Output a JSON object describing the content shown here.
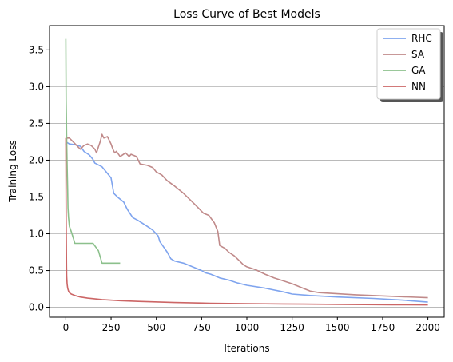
{
  "chart_data": {
    "type": "line",
    "title": "Loss Curve of Best Models",
    "xlabel": "Iterations",
    "ylabel": "Training Loss",
    "xlim": [
      -90,
      2090
    ],
    "ylim": [
      -0.135,
      3.83
    ],
    "x_ticks": [
      0,
      250,
      500,
      750,
      1000,
      1250,
      1500,
      1750,
      2000
    ],
    "y_ticks": [
      0.0,
      0.5,
      1.0,
      1.5,
      2.0,
      2.5,
      3.0,
      3.5
    ],
    "x_tick_labels": [
      "0",
      "250",
      "500",
      "750",
      "1000",
      "1250",
      "1500",
      "1750",
      "2000"
    ],
    "y_tick_labels": [
      "0.0",
      "0.5",
      "1.0",
      "1.5",
      "2.0",
      "2.5",
      "3.0",
      "3.5"
    ],
    "grid": "horizontal",
    "legend_position": "top-right",
    "series": [
      {
        "name": "RHC",
        "color": "#7fa4ee",
        "x": [
          0,
          20,
          50,
          80,
          100,
          130,
          150,
          160,
          200,
          230,
          250,
          265,
          290,
          320,
          340,
          370,
          400,
          450,
          480,
          510,
          520,
          540,
          560,
          580,
          600,
          650,
          700,
          750,
          770,
          800,
          850,
          900,
          950,
          1000,
          1100,
          1200,
          1250,
          1350,
          1500,
          1700,
          1850,
          2000
        ],
        "y": [
          2.25,
          2.22,
          2.21,
          2.19,
          2.12,
          2.07,
          2.01,
          1.96,
          1.91,
          1.82,
          1.76,
          1.55,
          1.49,
          1.43,
          1.33,
          1.22,
          1.18,
          1.1,
          1.05,
          0.97,
          0.89,
          0.82,
          0.75,
          0.66,
          0.63,
          0.6,
          0.55,
          0.5,
          0.47,
          0.45,
          0.4,
          0.37,
          0.33,
          0.3,
          0.26,
          0.21,
          0.18,
          0.16,
          0.14,
          0.12,
          0.1,
          0.07
        ]
      },
      {
        "name": "SA",
        "color": "#c08a8a",
        "x": [
          0,
          5,
          20,
          40,
          60,
          80,
          100,
          120,
          140,
          160,
          170,
          180,
          190,
          200,
          210,
          230,
          250,
          260,
          270,
          280,
          300,
          330,
          350,
          360,
          390,
          410,
          450,
          480,
          500,
          530,
          560,
          600,
          650,
          700,
          740,
          760,
          790,
          820,
          840,
          850,
          880,
          900,
          930,
          960,
          980,
          1000,
          1050,
          1100,
          1150,
          1200,
          1250,
          1300,
          1350,
          1400,
          1600,
          1800,
          2000
        ],
        "y": [
          2.2,
          2.3,
          2.3,
          2.25,
          2.2,
          2.15,
          2.2,
          2.22,
          2.2,
          2.15,
          2.1,
          2.18,
          2.25,
          2.35,
          2.3,
          2.32,
          2.22,
          2.15,
          2.1,
          2.12,
          2.05,
          2.1,
          2.05,
          2.08,
          2.05,
          1.95,
          1.93,
          1.9,
          1.84,
          1.8,
          1.72,
          1.65,
          1.55,
          1.43,
          1.33,
          1.28,
          1.25,
          1.15,
          1.03,
          0.84,
          0.8,
          0.75,
          0.7,
          0.63,
          0.58,
          0.55,
          0.51,
          0.45,
          0.4,
          0.36,
          0.32,
          0.27,
          0.22,
          0.2,
          0.17,
          0.15,
          0.13
        ]
      },
      {
        "name": "GA",
        "color": "#8cc08c",
        "x": [
          0,
          1,
          2,
          3,
          5,
          7,
          10,
          12,
          15,
          20,
          30,
          40,
          50,
          100,
          150,
          180,
          200,
          250,
          300
        ],
        "y": [
          3.65,
          3.2,
          2.8,
          2.6,
          2.25,
          1.95,
          1.6,
          1.35,
          1.22,
          1.1,
          1.03,
          0.95,
          0.87,
          0.87,
          0.87,
          0.77,
          0.6,
          0.6,
          0.6
        ]
      },
      {
        "name": "NN",
        "color": "#cc6666",
        "x": [
          0,
          1,
          2,
          3,
          4,
          5,
          7,
          10,
          15,
          20,
          30,
          50,
          80,
          120,
          200,
          300,
          400,
          600,
          800,
          1000,
          1200,
          1500,
          1800,
          2000
        ],
        "y": [
          2.3,
          1.8,
          1.2,
          0.8,
          0.55,
          0.42,
          0.32,
          0.26,
          0.22,
          0.2,
          0.18,
          0.16,
          0.14,
          0.125,
          0.105,
          0.09,
          0.08,
          0.065,
          0.055,
          0.05,
          0.045,
          0.04,
          0.035,
          0.032
        ]
      }
    ]
  }
}
